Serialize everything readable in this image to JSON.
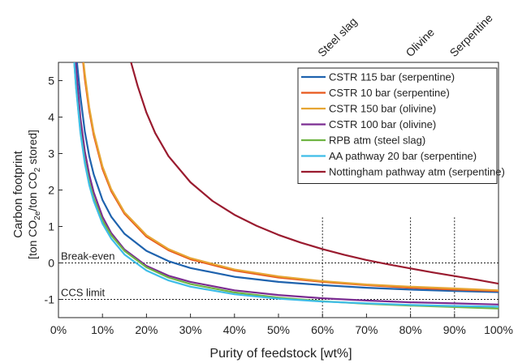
{
  "chart_data": {
    "type": "line",
    "xlabel": "Purity of feedstock [wt%]",
    "ylabel_line1": "Carbon footprint",
    "ylabel_line2": "[ton CO2e/ton CO2 stored]",
    "xlim": [
      0,
      100
    ],
    "ylim": [
      -1.5,
      5.5
    ],
    "xticks": [
      0,
      10,
      20,
      30,
      40,
      50,
      60,
      70,
      80,
      90,
      100
    ],
    "xtick_labels": [
      "0%",
      "10%",
      "20%",
      "30%",
      "40%",
      "50%",
      "60%",
      "70%",
      "80%",
      "90%",
      "100%"
    ],
    "yticks": [
      -1,
      0,
      1,
      2,
      3,
      4,
      5
    ],
    "ytick_labels": [
      "-1",
      "0",
      "1",
      "2",
      "3",
      "4",
      "5"
    ],
    "grid": false,
    "legend_position": "top-right",
    "series": [
      {
        "name": "CSTR 115 bar (serpentine)",
        "color": "#1f63ae",
        "x": [
          4.2,
          5,
          6,
          7,
          8,
          10,
          12,
          15,
          20,
          25,
          30,
          40,
          50,
          60,
          70,
          80,
          90,
          100
        ],
        "y": [
          5.5,
          4.56,
          3.6,
          2.93,
          2.43,
          1.73,
          1.27,
          0.8,
          0.33,
          0.05,
          -0.14,
          -0.38,
          -0.52,
          -0.61,
          -0.68,
          -0.73,
          -0.77,
          -0.8
        ]
      },
      {
        "name": "CSTR 10 bar (serpentine)",
        "color": "#e8571c",
        "x": [
          5.6,
          6,
          7,
          8,
          10,
          12,
          15,
          20,
          25,
          30,
          40,
          50,
          60,
          70,
          80,
          90,
          100
        ],
        "y": [
          5.5,
          5.05,
          4.17,
          3.51,
          2.58,
          1.97,
          1.35,
          0.72,
          0.35,
          0.1,
          -0.21,
          -0.4,
          -0.52,
          -0.61,
          -0.68,
          -0.73,
          -0.77
        ]
      },
      {
        "name": "CSTR 150 bar (olivine)",
        "color": "#e6a533",
        "x": [
          5.7,
          6,
          7,
          8,
          10,
          12,
          15,
          20,
          25,
          30,
          40,
          50,
          60,
          70,
          80,
          90,
          100
        ],
        "y": [
          5.5,
          5.18,
          4.27,
          3.59,
          2.65,
          2.02,
          1.39,
          0.76,
          0.38,
          0.13,
          -0.18,
          -0.37,
          -0.5,
          -0.59,
          -0.65,
          -0.7,
          -0.75
        ]
      },
      {
        "name": "CSTR 100 bar (olivine)",
        "color": "#7b2c91",
        "x": [
          3.9,
          4,
          5,
          6,
          7,
          8,
          10,
          12,
          15,
          20,
          25,
          30,
          40,
          50,
          60,
          70,
          80,
          90,
          100
        ],
        "y": [
          5.5,
          5.32,
          3.96,
          3.06,
          2.42,
          1.94,
          1.27,
          0.82,
          0.37,
          -0.08,
          -0.35,
          -0.52,
          -0.75,
          -0.88,
          -0.97,
          -1.03,
          -1.08,
          -1.11,
          -1.14
        ]
      },
      {
        "name": "RPB atm (steel slag)",
        "color": "#6fb443",
        "x": [
          3.6,
          4,
          5,
          6,
          7,
          8,
          10,
          12,
          15,
          20,
          25,
          30,
          40,
          50,
          60,
          70,
          80,
          90,
          100
        ],
        "y": [
          5.5,
          4.84,
          3.62,
          2.8,
          2.22,
          1.78,
          1.16,
          0.76,
          0.33,
          -0.12,
          -0.4,
          -0.58,
          -0.81,
          -0.95,
          -1.05,
          -1.12,
          -1.17,
          -1.21,
          -1.25
        ]
      },
      {
        "name": "AA pathway 20 bar (serpentine)",
        "color": "#3ebde8",
        "x": [
          3.6,
          4,
          5,
          6,
          7,
          8,
          10,
          12,
          15,
          20,
          25,
          30,
          40,
          50,
          60,
          70,
          80,
          90,
          100
        ],
        "y": [
          5.5,
          4.8,
          3.56,
          2.73,
          2.14,
          1.7,
          1.08,
          0.67,
          0.23,
          -0.21,
          -0.48,
          -0.65,
          -0.86,
          -0.98,
          -1.06,
          -1.11,
          -1.15,
          -1.18,
          -1.2
        ]
      },
      {
        "name": "Nottingham pathway atm (serpentine)",
        "color": "#9a1b2f",
        "x": [
          16.5,
          18,
          20,
          22,
          25,
          30,
          35,
          40,
          45,
          50,
          55,
          60,
          65,
          70,
          75,
          80,
          85,
          90,
          95,
          100
        ],
        "y": [
          5.5,
          4.85,
          4.12,
          3.56,
          2.93,
          2.21,
          1.7,
          1.32,
          1.02,
          0.77,
          0.56,
          0.38,
          0.22,
          0.08,
          -0.04,
          -0.15,
          -0.26,
          -0.36,
          -0.46,
          -0.57
        ]
      }
    ],
    "hlines": [
      {
        "y": 0,
        "label": "Break-even"
      },
      {
        "y": -1,
        "label": "CCS limit"
      }
    ],
    "vlines": [
      {
        "x": 60,
        "label": "Steel slag"
      },
      {
        "x": 80,
        "label": "Olivine"
      },
      {
        "x": 90,
        "label": "Serpentine"
      }
    ]
  }
}
